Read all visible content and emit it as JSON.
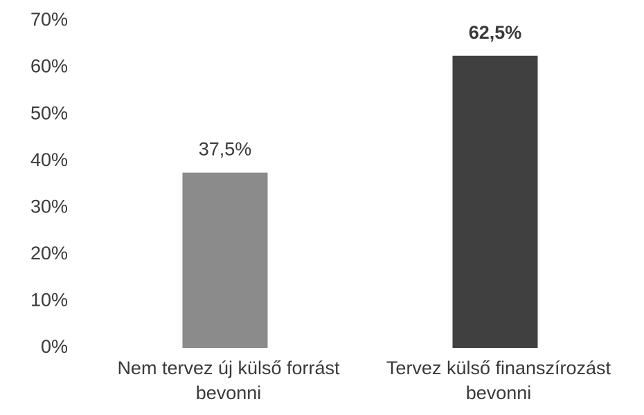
{
  "chart_data": {
    "type": "bar",
    "categories": [
      "Nem tervez új külső forrást bevonni",
      "Tervez külső finanszírozást bevonni"
    ],
    "values": [
      37.5,
      62.5
    ],
    "value_labels": [
      "37,5%",
      "62,5%"
    ],
    "colors": [
      "#8c8b8c",
      "#404040"
    ],
    "ylim": [
      0,
      70
    ],
    "yticks": [
      {
        "value": 0,
        "label": "0%"
      },
      {
        "value": 10,
        "label": "10%"
      },
      {
        "value": 20,
        "label": "20%"
      },
      {
        "value": 30,
        "label": "30%"
      },
      {
        "value": 40,
        "label": "40%"
      },
      {
        "value": 50,
        "label": "50%"
      },
      {
        "value": 60,
        "label": "60%"
      },
      {
        "value": 70,
        "label": "70%"
      }
    ],
    "grid": false
  }
}
